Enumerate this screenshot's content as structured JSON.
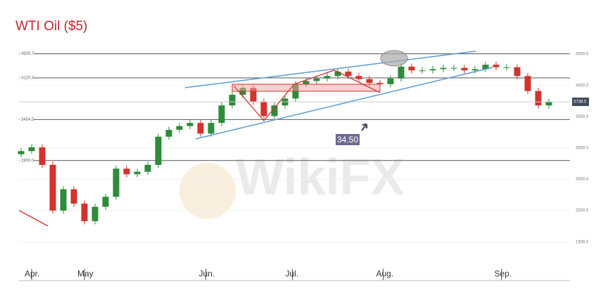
{
  "chart_data": {
    "type": "candlestick",
    "title": "WTI Oil ($5)",
    "watermark": "WikiFX",
    "open": [
      2900,
      2950,
      3010,
      2730,
      2000,
      2340,
      2110,
      1830,
      2060,
      2220,
      2670,
      2580,
      2620,
      2730,
      3180,
      3290,
      3350,
      3400,
      3230,
      3400,
      3680,
      3850,
      3960,
      3740,
      3510,
      3680,
      3790,
      4020,
      4070,
      4110,
      4150,
      4220,
      4150,
      4100,
      4040,
      4020,
      4110,
      4300,
      4240,
      4240,
      4260,
      4280,
      4280,
      4240,
      4260,
      4330,
      4290,
      4290,
      4150,
      3910,
      3680
    ],
    "high": [
      3000,
      3060,
      3060,
      2780,
      2390,
      2390,
      2160,
      2110,
      2270,
      2720,
      2720,
      2670,
      2780,
      3230,
      3340,
      3400,
      3450,
      3450,
      3450,
      3730,
      3900,
      4010,
      4010,
      3790,
      3730,
      3840,
      4070,
      4120,
      4160,
      4200,
      4270,
      4270,
      4200,
      4150,
      4090,
      4160,
      4350,
      4350,
      4290,
      4310,
      4330,
      4330,
      4330,
      4310,
      4380,
      4380,
      4340,
      4340,
      4200,
      3960,
      3788
    ],
    "low": [
      2850,
      2900,
      2680,
      1950,
      1950,
      2060,
      1780,
      1780,
      2010,
      2170,
      2530,
      2530,
      2570,
      2680,
      3130,
      3240,
      3300,
      3180,
      3180,
      3350,
      3630,
      3800,
      3690,
      3460,
      3460,
      3630,
      3740,
      3970,
      4020,
      4060,
      4100,
      4100,
      4050,
      3990,
      3970,
      3970,
      4060,
      4190,
      4190,
      4190,
      4210,
      4230,
      4190,
      4190,
      4210,
      4240,
      4240,
      4100,
      3860,
      3630,
      3630
    ],
    "close": [
      2950,
      3010,
      2730,
      2000,
      2340,
      2110,
      1830,
      2060,
      2220,
      2670,
      2580,
      2620,
      2730,
      3180,
      3290,
      3350,
      3400,
      3230,
      3400,
      3680,
      3850,
      3960,
      3740,
      3510,
      3680,
      3790,
      4020,
      4070,
      4110,
      4150,
      4220,
      4150,
      4100,
      4040,
      4020,
      4110,
      4300,
      4240,
      4240,
      4260,
      4280,
      4280,
      4240,
      4260,
      4330,
      4290,
      4290,
      4150,
      3910,
      3680,
      3738
    ],
    "up_color": "#2e8b3a",
    "down_color": "#d0342c",
    "xlim": [
      -0.2,
      50.47
    ],
    "xticks": [
      {
        "value": 1,
        "label": "Apr."
      },
      {
        "value": 6,
        "label": "May"
      },
      {
        "value": 17.5,
        "label": "Jun."
      },
      {
        "value": 25.7,
        "label": "Jul."
      },
      {
        "value": 34.3,
        "label": "Aug."
      },
      {
        "value": 45.5,
        "label": "Sep."
      }
    ],
    "ylim": [
      1160,
      4860
    ],
    "yticks": [
      {
        "value": 1500,
        "label": "1500.0"
      },
      {
        "value": 2000,
        "label": "2000.0"
      },
      {
        "value": 2500,
        "label": "2500.0"
      },
      {
        "value": 3000,
        "label": "3000.0"
      },
      {
        "value": 3500,
        "label": "3500.0"
      },
      {
        "value": 4000,
        "label": "4000.0"
      },
      {
        "value": 4500,
        "label": "4500.0"
      }
    ],
    "levels": [
      {
        "value": 4505.7,
        "label": "4505.7"
      },
      {
        "value": 4120.4,
        "label": "4120.4"
      },
      {
        "value": 3454.5,
        "label": "3454.5"
      },
      {
        "value": 2800,
        "label": "2800.0"
      }
    ],
    "last_price": {
      "value": 3738,
      "label": "3738.0"
    },
    "annotation": "34.50",
    "grid": true
  }
}
